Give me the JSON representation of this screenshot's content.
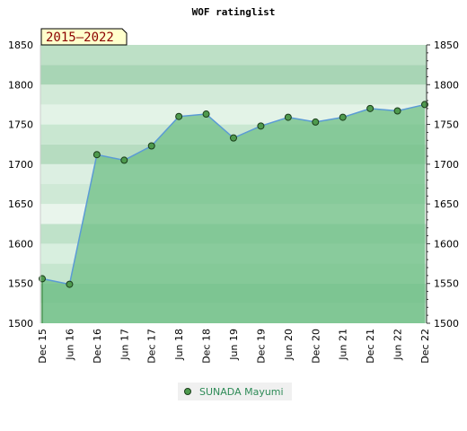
{
  "chart_data": {
    "type": "line",
    "title": "WOF ratinglist",
    "period_label": "2015–2022",
    "categories": [
      "Dec 15",
      "Jun 16",
      "Dec 16",
      "Jun 17",
      "Dec 17",
      "Jun 18",
      "Dec 18",
      "Jun 19",
      "Dec 19",
      "Jun 20",
      "Dec 20",
      "Jun 21",
      "Dec 21",
      "Jun 22",
      "Dec 22"
    ],
    "series": [
      {
        "name": "SUNADA Mayumi",
        "values": [
          1556,
          1549,
          1712,
          1705,
          1723,
          1760,
          1763,
          1733,
          1748,
          1759,
          1753,
          1759,
          1770,
          1767,
          1775
        ],
        "color": "#6aa84f"
      }
    ],
    "ylim": [
      1500,
      1850
    ],
    "yticks": [
      1500,
      1550,
      1600,
      1650,
      1700,
      1750,
      1800,
      1850
    ],
    "xlabel": "",
    "ylabel": "",
    "grid": true,
    "legend_position": "bottom",
    "colors": {
      "fill": "#6fbf86",
      "line": "#5b9bd5",
      "marker": "#4e9a4e",
      "period_label_bg": "#ffffcc"
    }
  }
}
